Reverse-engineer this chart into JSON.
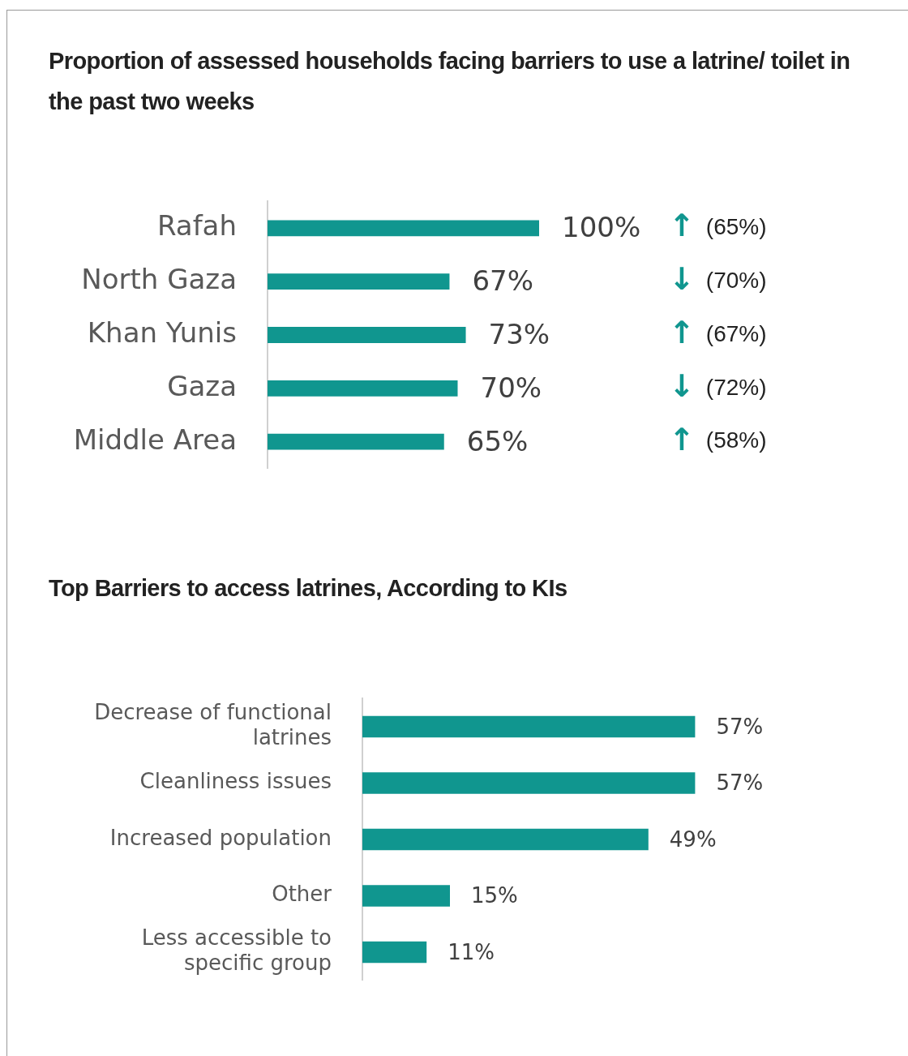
{
  "chart_data": [
    {
      "type": "bar",
      "orientation": "horizontal",
      "title": "Proportion of assessed households facing barriers to use a latrine/ toilet in the past two weeks",
      "categories": [
        "Rafah",
        "North Gaza",
        "Khan Yunis",
        "Gaza",
        "Middle Area"
      ],
      "values": [
        100,
        67,
        73,
        70,
        65
      ],
      "value_labels": [
        "100%",
        "67%",
        "73%",
        "70%",
        "65%"
      ],
      "color": "#10968f",
      "tick_labels": "y",
      "grid": false,
      "legend": false,
      "annotations": [
        "↑ (65%)",
        "↓ (70%)",
        "↑ (67%)",
        "↓ (72%)",
        "↑ (58%)"
      ]
    },
    {
      "type": "bar",
      "orientation": "horizontal",
      "title": "Top Barriers to access latrines, According to KIs",
      "categories": [
        "Decrease of functional latrines",
        "Cleanliness issues",
        "Increased population",
        "Other",
        "Less accessible to specific group"
      ],
      "values": [
        57,
        57,
        49,
        15,
        11
      ],
      "value_labels": [
        "57%",
        "57%",
        "49%",
        "15%",
        "11%"
      ],
      "color": "#10968f",
      "tick_labels": "y",
      "grid": false,
      "legend": false
    }
  ]
}
